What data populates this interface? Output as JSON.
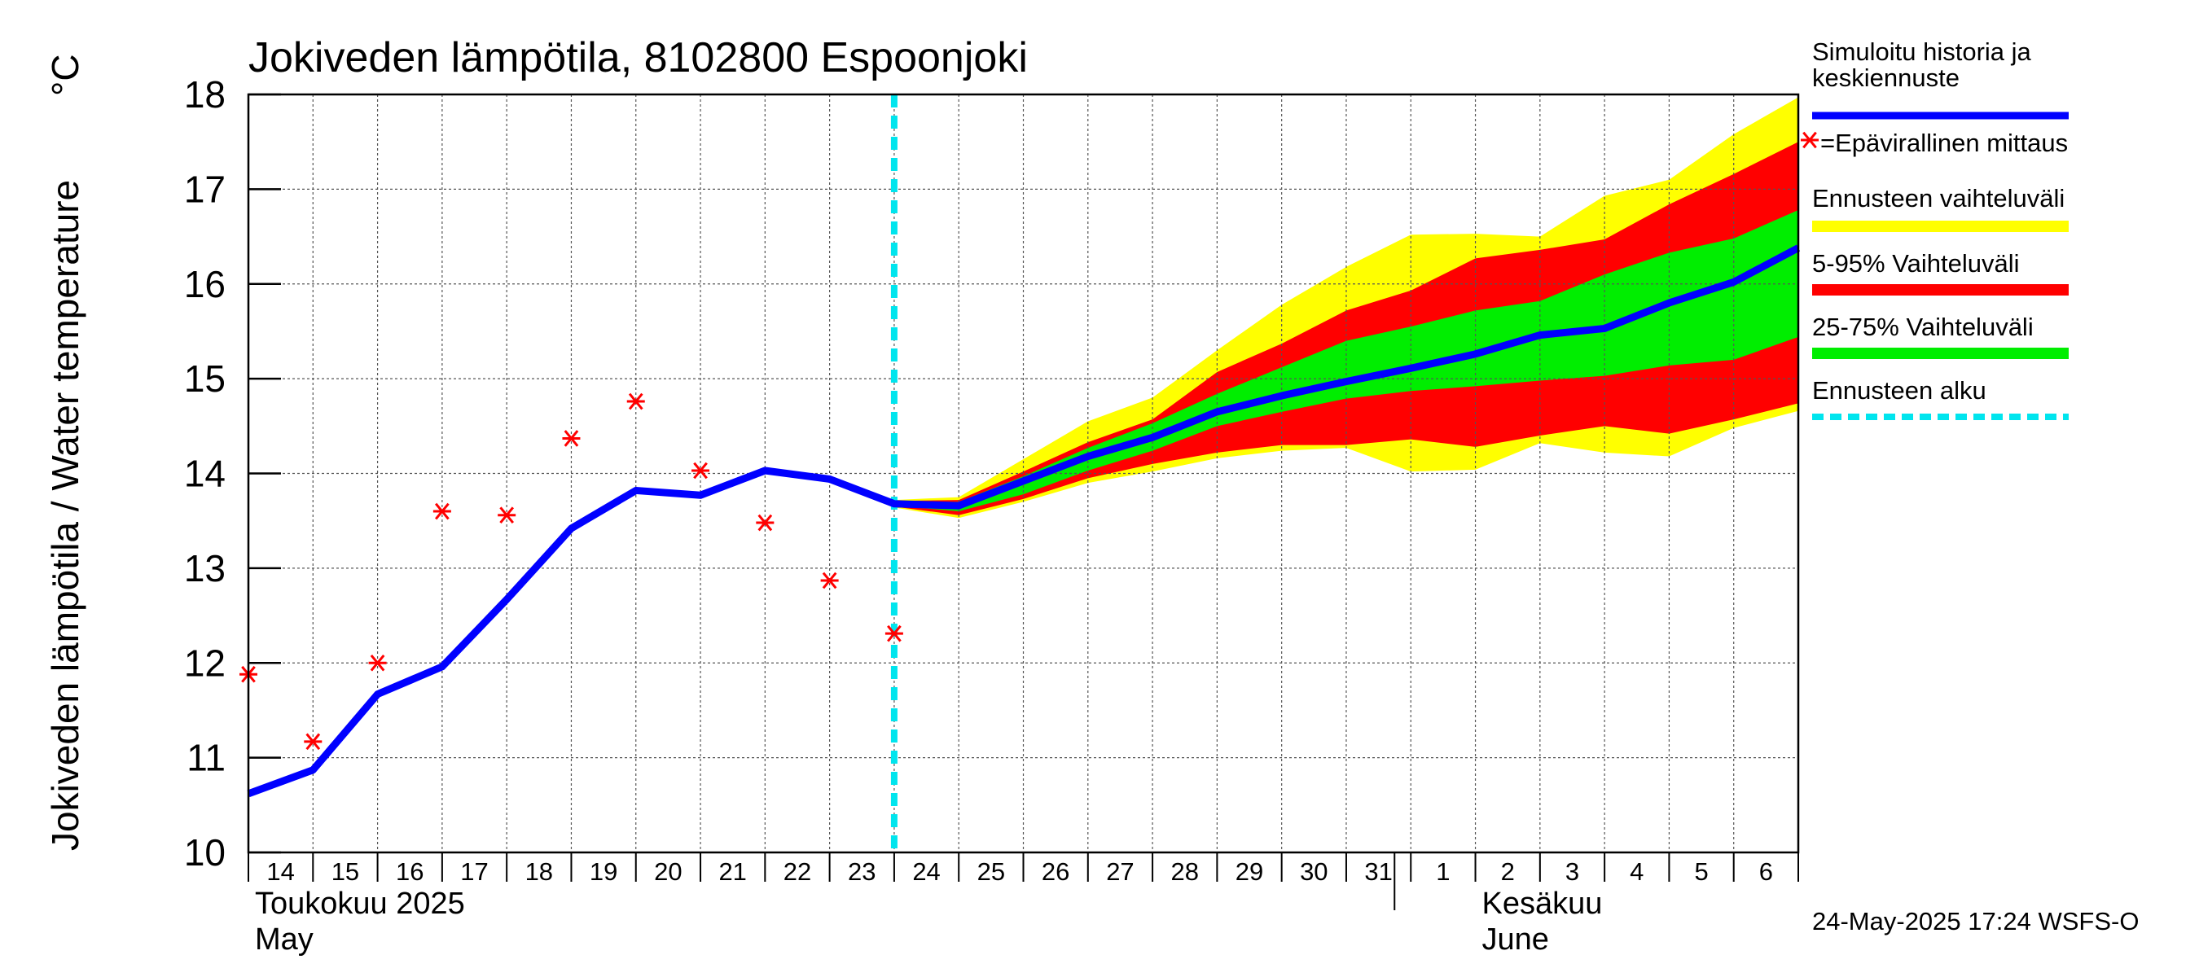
{
  "chart_data": {
    "type": "line",
    "title": "Jokiveden lämpötila, 8102800 Espoonjoki",
    "ylabel": "Jokiveden lämpötila / Water temperature",
    "yunit": "°C",
    "ylim": [
      10,
      18
    ],
    "yticks": [
      10,
      11,
      12,
      13,
      14,
      15,
      16,
      17,
      18
    ],
    "xlim": [
      0,
      24
    ],
    "x_tick_labels": [
      "14",
      "15",
      "16",
      "17",
      "18",
      "19",
      "20",
      "21",
      "22",
      "23",
      "24",
      "25",
      "26",
      "27",
      "28",
      "29",
      "30",
      "31",
      "1",
      "2",
      "3",
      "4",
      "5",
      "6"
    ],
    "month_labels": [
      {
        "line1": "Toukokuu  2025",
        "line2": "May",
        "day_index": 0
      },
      {
        "line1": "Kesäkuu",
        "line2": "June",
        "day_index": 19
      }
    ],
    "month_divider_day_index": 18,
    "forecast_start": 10,
    "series": [
      {
        "name": "Simuloitu historia ja keskiennuste",
        "role": "median",
        "color": "#0000ff",
        "x": [
          0,
          1,
          2,
          3,
          4,
          5,
          6,
          7,
          8,
          9,
          10,
          11,
          12,
          13,
          14,
          15,
          16,
          17,
          18,
          19,
          20,
          21,
          22,
          23,
          24
        ],
        "y": [
          10.62,
          10.87,
          11.67,
          11.96,
          12.67,
          13.42,
          13.82,
          13.77,
          14.03,
          13.94,
          13.68,
          13.66,
          13.92,
          14.18,
          14.38,
          14.65,
          14.82,
          14.97,
          15.11,
          15.26,
          15.46,
          15.53,
          15.8,
          16.02,
          16.38
        ]
      },
      {
        "name": "Epävirallinen mittaus",
        "role": "observations",
        "color": "#ff0000",
        "x": [
          0,
          1,
          2,
          3,
          4,
          5,
          6,
          7,
          8,
          9,
          10
        ],
        "y": [
          11.88,
          11.17,
          12.0,
          13.6,
          13.56,
          14.37,
          14.76,
          14.03,
          13.48,
          12.87,
          12.31
        ]
      }
    ],
    "bands": [
      {
        "name": "Ennusteen vaihteluväli",
        "color": "#ffff00",
        "x": [
          10,
          11,
          12,
          13,
          14,
          15,
          16,
          17,
          18,
          19,
          20,
          21,
          22,
          23,
          24
        ],
        "upper": [
          13.72,
          13.75,
          14.15,
          14.55,
          14.8,
          15.3,
          15.78,
          16.18,
          16.52,
          16.53,
          16.5,
          16.93,
          17.1,
          17.58,
          17.97
        ],
        "lower": [
          13.64,
          13.53,
          13.7,
          13.9,
          14.02,
          14.16,
          14.24,
          14.27,
          14.02,
          14.04,
          14.32,
          14.22,
          14.18,
          14.48,
          14.66
        ]
      },
      {
        "name": "5-95% Vaihteluväli",
        "color": "#ff0000",
        "x": [
          10,
          11,
          12,
          13,
          14,
          15,
          16,
          17,
          18,
          19,
          20,
          21,
          22,
          23,
          24
        ],
        "upper": [
          13.71,
          13.72,
          14.02,
          14.33,
          14.57,
          15.07,
          15.37,
          15.72,
          15.93,
          16.27,
          16.36,
          16.47,
          16.84,
          17.16,
          17.5
        ],
        "lower": [
          13.65,
          13.56,
          13.73,
          13.95,
          14.1,
          14.22,
          14.3,
          14.3,
          14.36,
          14.28,
          14.4,
          14.5,
          14.42,
          14.57,
          14.74
        ]
      },
      {
        "name": "25-75% Vaihteluväli",
        "color": "#00ee00",
        "x": [
          10,
          11,
          12,
          13,
          14,
          15,
          16,
          17,
          18,
          19,
          20,
          21,
          22,
          23,
          24
        ],
        "upper": [
          13.7,
          13.7,
          13.97,
          14.27,
          14.53,
          14.84,
          15.12,
          15.4,
          15.55,
          15.72,
          15.82,
          16.1,
          16.33,
          16.48,
          16.78
        ],
        "lower": [
          13.66,
          13.6,
          13.78,
          14.03,
          14.24,
          14.5,
          14.65,
          14.79,
          14.87,
          14.92,
          14.98,
          15.03,
          15.14,
          15.2,
          15.44
        ]
      }
    ],
    "legend": [
      {
        "label_line1": "Simuloitu historia ja",
        "label_line2": "keskiennuste",
        "style": "line",
        "color": "#0000ff"
      },
      {
        "label_line1": "=Epävirallinen mittaus",
        "label_line2": "",
        "style": "star",
        "color": "#ff0000"
      },
      {
        "label_line1": "Ennusteen vaihteluväli",
        "label_line2": "",
        "style": "bar",
        "color": "#ffff00"
      },
      {
        "label_line1": "5-95% Vaihteluväli",
        "label_line2": "",
        "style": "bar",
        "color": "#ff0000"
      },
      {
        "label_line1": "25-75% Vaihteluväli",
        "label_line2": "",
        "style": "bar",
        "color": "#00ee00"
      },
      {
        "label_line1": "Ennusteen alku",
        "label_line2": "",
        "style": "dashed",
        "color": "#00e5ee"
      }
    ],
    "grid": true,
    "legend_position": "right"
  },
  "footer": "24-May-2025 17:24 WSFS-O"
}
